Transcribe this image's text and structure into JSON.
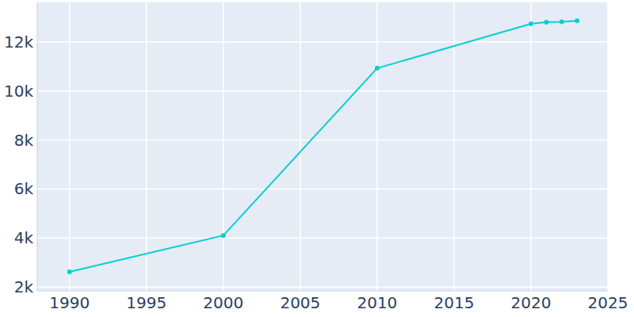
{
  "chart_data": {
    "type": "line",
    "x": [
      1990,
      2000,
      2010,
      2020,
      2021,
      2022,
      2023
    ],
    "series": [
      {
        "color": "#0bcfcf",
        "marker": "circle",
        "values": [
          2615,
          4100,
          10930,
          12745,
          12810,
          12830,
          12870
        ]
      }
    ],
    "xlim": [
      1987.9,
      2025
    ],
    "xticks": [
      1990,
      1995,
      2000,
      2005,
      2010,
      2015,
      2020,
      2025
    ],
    "ylim": [
      1840,
      13620
    ],
    "yticks": [
      {
        "value": 2000,
        "label": "2k"
      },
      {
        "value": 4000,
        "label": "4k"
      },
      {
        "value": 6000,
        "label": "6k"
      },
      {
        "value": 8000,
        "label": "8k"
      },
      {
        "value": 10000,
        "label": "10k"
      },
      {
        "value": 12000,
        "label": "12k"
      }
    ],
    "grid": true
  }
}
